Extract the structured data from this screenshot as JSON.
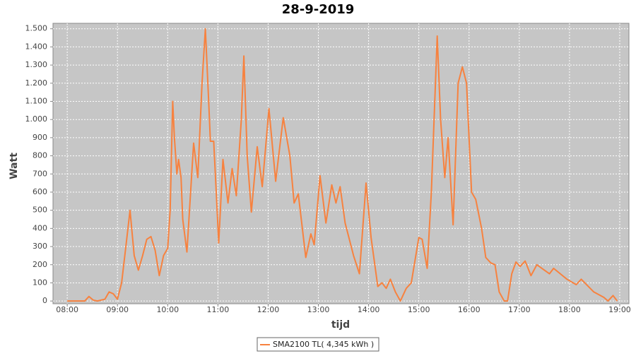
{
  "chart_data": {
    "type": "line",
    "title": "28-9-2019",
    "x_label": "tijd",
    "y_label": "Watt",
    "x": [
      "08:00",
      "08:21",
      "08:26",
      "08:31",
      "08:36",
      "08:45",
      "08:50",
      "08:55",
      "09:00",
      "09:05",
      "09:10",
      "09:15",
      "09:20",
      "09:25",
      "09:30",
      "09:35",
      "09:40",
      "09:45",
      "09:50",
      "09:55",
      "10:00",
      "10:03",
      "10:06",
      "10:08",
      "10:11",
      "10:13",
      "10:16",
      "10:18",
      "10:23",
      "10:31",
      "10:36",
      "10:41",
      "10:45",
      "10:49",
      "10:51",
      "10:55",
      "10:58",
      "11:01",
      "11:06",
      "11:12",
      "11:17",
      "11:22",
      "11:28",
      "11:31",
      "11:35",
      "11:40",
      "11:47",
      "11:53",
      "12:01",
      "12:09",
      "12:18",
      "12:26",
      "12:31",
      "12:36",
      "12:45",
      "12:51",
      "12:55",
      "13:02",
      "13:09",
      "13:16",
      "13:21",
      "13:26",
      "13:32",
      "13:42",
      "13:49",
      "13:57",
      "14:03",
      "14:11",
      "14:16",
      "14:21",
      "14:26",
      "14:32",
      "14:38",
      "14:45",
      "14:51",
      "15:00",
      "15:04",
      "15:10",
      "15:15",
      "15:22",
      "15:26",
      "15:31",
      "15:35",
      "15:41",
      "15:47",
      "15:52",
      "15:57",
      "16:03",
      "16:08",
      "16:15",
      "16:20",
      "16:26",
      "16:31",
      "16:36",
      "16:42",
      "16:46",
      "16:51",
      "16:56",
      "17:01",
      "17:07",
      "17:14",
      "17:21",
      "17:36",
      "17:41",
      "17:49",
      "17:57",
      "18:08",
      "18:14",
      "18:29",
      "18:41",
      "18:46",
      "18:52",
      "18:57"
    ],
    "series": [
      {
        "name": "SMA2100 TL( 4,345 kWh )",
        "color": "#f7823f",
        "values": [
          0,
          0,
          25,
          5,
          0,
          10,
          50,
          40,
          10,
          100,
          300,
          500,
          250,
          170,
          250,
          340,
          355,
          280,
          140,
          250,
          290,
          500,
          1100,
          900,
          700,
          780,
          680,
          450,
          270,
          870,
          680,
          1200,
          1500,
          1100,
          880,
          880,
          600,
          320,
          780,
          540,
          730,
          580,
          1000,
          1350,
          800,
          490,
          850,
          630,
          1060,
          660,
          1010,
          800,
          540,
          590,
          240,
          370,
          310,
          690,
          430,
          640,
          540,
          630,
          430,
          250,
          150,
          650,
          350,
          80,
          100,
          70,
          120,
          50,
          0,
          70,
          100,
          350,
          340,
          180,
          600,
          1460,
          1000,
          680,
          900,
          420,
          1200,
          1290,
          1200,
          600,
          560,
          400,
          240,
          210,
          200,
          50,
          0,
          0,
          150,
          215,
          190,
          220,
          140,
          200,
          150,
          180,
          150,
          120,
          90,
          120,
          50,
          20,
          0,
          30,
          0
        ]
      }
    ],
    "xlim": [
      "07:43",
      "19:11"
    ],
    "xticks": [
      "08:00",
      "09:00",
      "10:00",
      "11:00",
      "12:00",
      "13:00",
      "14:00",
      "15:00",
      "16:00",
      "17:00",
      "18:00",
      "19:00"
    ],
    "ylim": [
      -15,
      1530
    ],
    "yticks": [
      0,
      100,
      200,
      300,
      400,
      500,
      600,
      700,
      800,
      900,
      {
        "value": 1000,
        "label": "1.000"
      },
      {
        "value": 1100,
        "label": "1.100"
      },
      {
        "value": 1200,
        "label": "1.200"
      },
      {
        "value": 1300,
        "label": "1.300"
      },
      {
        "value": 1400,
        "label": "1.400"
      },
      {
        "value": 1500,
        "label": "1.500"
      }
    ],
    "grid": true,
    "legend": "bottom"
  }
}
